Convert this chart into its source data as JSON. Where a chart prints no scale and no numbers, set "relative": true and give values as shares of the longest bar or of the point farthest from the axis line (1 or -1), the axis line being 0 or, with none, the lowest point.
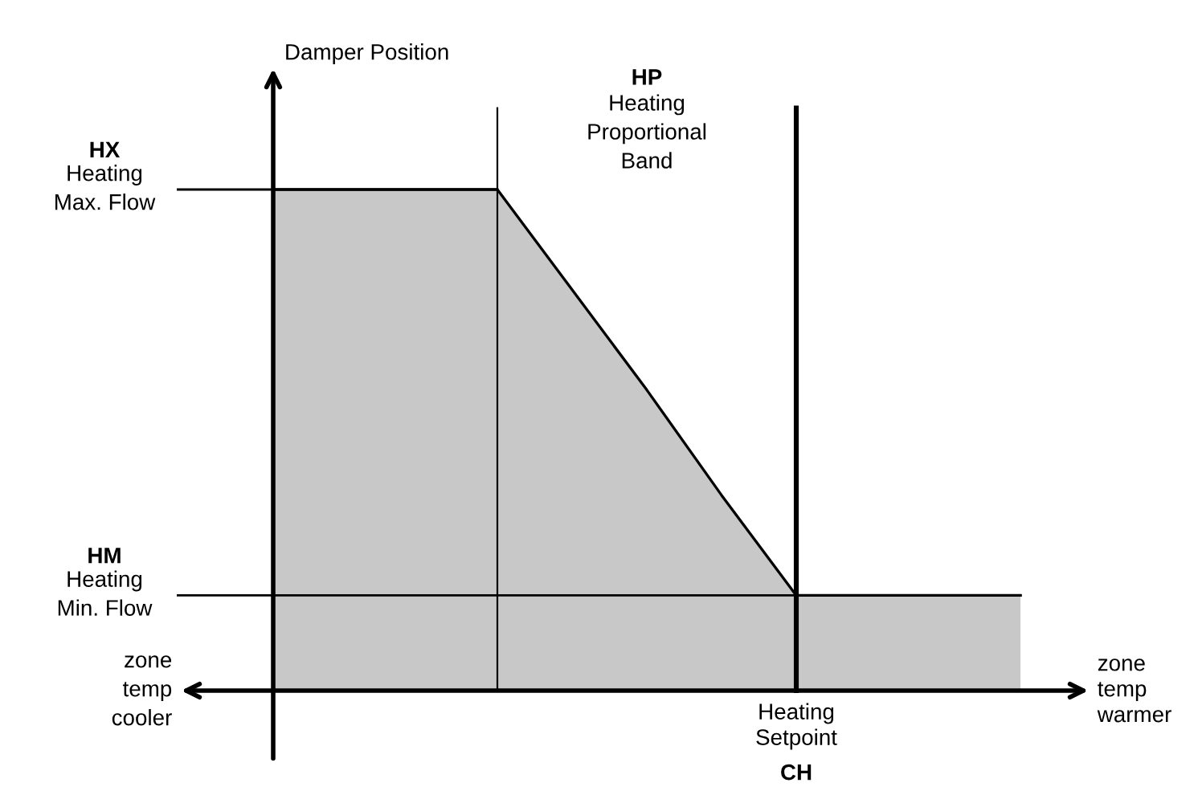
{
  "chart_data": {
    "type": "area",
    "relative": true,
    "xlabel": "zone\ntemp\nwarmer",
    "categories": [
      null,
      null,
      null,
      null,
      null,
      null,
      null,
      null,
      null,
      null,
      null
    ],
    "series": [
      {
        "color": "#c8c8c8",
        "values": [
          1,
          1,
          1,
          1,
          0.8,
          0.6,
          0.39,
          0.19,
          0.19,
          0.19,
          0.19
        ]
      }
    ],
    "ref_lines": [
      {
        "axis": "y",
        "value": 1,
        "label": "Heating\nMax. Flow",
        "color": "#000000",
        "line_style": "solid"
      },
      {
        "axis": "y",
        "value": 0.19,
        "label": "Heating\nMin. Flow",
        "color": "#000000",
        "line_style": "solid"
      }
    ],
    "annotations": [
      "HX",
      "HM",
      "HP",
      "Heating\nProportional\nBand",
      "CH",
      "zone\ntemp\ncooler",
      "Heating\nSetpoint",
      "Damper Position"
    ]
  }
}
